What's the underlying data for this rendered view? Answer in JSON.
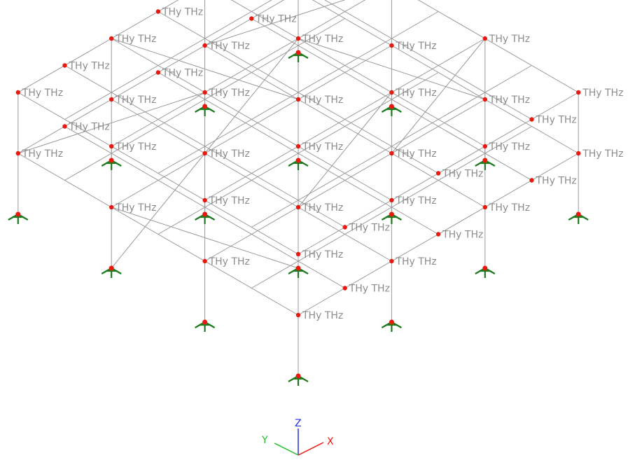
{
  "viewport": {
    "node_label": "THy THz",
    "labeled_nodes": [
      "n1",
      "n2",
      "n3",
      "n4",
      "n5",
      "n6",
      "n7",
      "n8",
      "n9",
      "n10",
      "n11",
      "n12",
      "n13",
      "n14",
      "n15",
      "n16",
      "n17",
      "n18",
      "n19",
      "n20",
      "n21",
      "n22",
      "n23",
      "n24",
      "n25",
      "n26",
      "n27",
      "n28",
      "n29",
      "n30",
      "n31",
      "n32",
      "n33",
      "n34",
      "n35",
      "n36",
      "n37",
      "n38",
      "n39",
      "n40",
      "n41",
      "n42"
    ],
    "supported_nodes": [
      "s1",
      "s2",
      "s3",
      "s4",
      "s5",
      "s6",
      "s7",
      "s8",
      "s9",
      "s10",
      "s11",
      "s12",
      "s13"
    ]
  },
  "axis_triad": {
    "x_label": "X",
    "y_label": "Y",
    "z_label": "Z",
    "x_color": "#e8190f",
    "y_color": "#1fbf2a",
    "z_color": "#2430e0"
  },
  "colors": {
    "member": "#9a9a9a",
    "node": "#e8190f",
    "support": "#1c7a1c",
    "label": "#8c8c8c"
  },
  "icons": [
    "fixed-support-icon",
    "axis-triad-icon"
  ]
}
